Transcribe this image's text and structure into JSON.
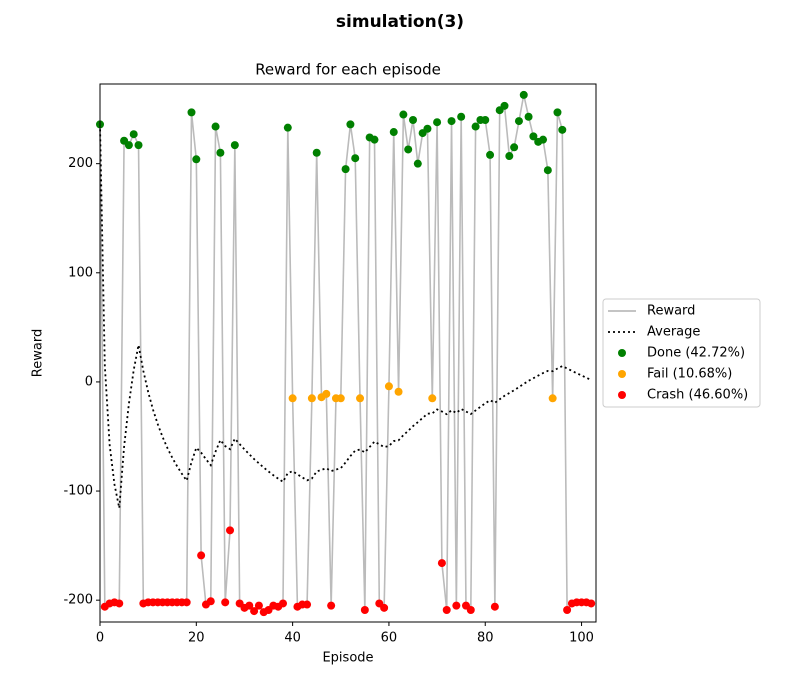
{
  "chart_data": {
    "type": "line",
    "suptitle": "simulation(3)",
    "title": "Reward for each episode",
    "xlabel": "Episode",
    "ylabel": "Reward",
    "xlim": [
      0,
      103
    ],
    "ylim": [
      -220,
      273
    ],
    "xticks": [
      0,
      20,
      40,
      60,
      80,
      100
    ],
    "yticks": [
      -200,
      -100,
      0,
      100,
      200
    ],
    "legend": "outside right",
    "series": [
      {
        "name": "Reward",
        "kind": "line",
        "linestyle": "solid",
        "color": "#bbbbbb",
        "x": [
          0,
          1,
          2,
          3,
          4,
          5,
          6,
          7,
          8,
          9,
          10,
          11,
          12,
          13,
          14,
          15,
          16,
          17,
          18,
          19,
          20,
          21,
          22,
          23,
          24,
          25,
          26,
          27,
          28,
          29,
          30,
          31,
          32,
          33,
          34,
          35,
          36,
          37,
          38,
          39,
          40,
          41,
          42,
          43,
          44,
          45,
          46,
          47,
          48,
          49,
          50,
          51,
          52,
          53,
          54,
          55,
          56,
          57,
          58,
          59,
          60,
          61,
          62,
          63,
          64,
          65,
          66,
          67,
          68,
          69,
          70,
          71,
          72,
          73,
          74,
          75,
          76,
          77,
          78,
          79,
          80,
          81,
          82,
          83,
          84,
          85,
          86,
          87,
          88,
          89,
          90,
          91,
          92,
          93,
          94,
          95,
          96,
          97,
          98,
          99,
          100,
          101,
          102
        ],
        "values": [
          236,
          -206,
          -203,
          -202,
          -203,
          221,
          217,
          227,
          217,
          -203,
          -202,
          -202,
          -202,
          -202,
          -202,
          -202,
          -202,
          -202,
          -202,
          247,
          204,
          -159,
          -204,
          -201,
          234,
          210,
          -202,
          -136,
          217,
          -203,
          -207,
          -205,
          -210,
          -205,
          -211,
          -209,
          -205,
          -206,
          -203,
          233,
          -15,
          -206,
          -204,
          -204,
          -15,
          210,
          -14,
          -11,
          -205,
          -15,
          -15,
          195,
          236,
          205,
          -15,
          -209,
          224,
          222,
          -203,
          -207,
          -4,
          229,
          -9,
          245,
          213,
          240,
          200,
          228,
          232,
          -15,
          238,
          -166,
          -209,
          239,
          -205,
          243,
          -205,
          -209,
          234,
          240,
          240,
          208,
          -206,
          249,
          253,
          207,
          215,
          239,
          263,
          243,
          225,
          220,
          222,
          194,
          -15,
          247,
          231,
          -209,
          -203,
          -202,
          -202,
          -202,
          -203
        ]
      },
      {
        "name": "Average",
        "kind": "line",
        "linestyle": "dotted",
        "color": "#000000",
        "x": [
          0,
          1,
          2,
          3,
          4,
          5,
          6,
          7,
          8,
          9,
          10,
          11,
          12,
          13,
          14,
          15,
          16,
          17,
          18,
          19,
          20,
          21,
          22,
          23,
          24,
          25,
          26,
          27,
          28,
          29,
          30,
          31,
          32,
          33,
          34,
          35,
          36,
          37,
          38,
          39,
          40,
          41,
          42,
          43,
          44,
          45,
          46,
          47,
          48,
          49,
          50,
          51,
          52,
          53,
          54,
          55,
          56,
          57,
          58,
          59,
          60,
          61,
          62,
          63,
          64,
          65,
          66,
          67,
          68,
          69,
          70,
          71,
          72,
          73,
          74,
          75,
          76,
          77,
          78,
          79,
          80,
          81,
          82,
          83,
          84,
          85,
          86,
          87,
          88,
          89,
          90,
          91,
          92,
          93,
          94,
          95,
          96,
          97,
          98,
          99,
          100,
          101,
          102
        ],
        "values": [
          236,
          15,
          -57.7,
          -93.8,
          -115.6,
          -59.5,
          -20,
          10.9,
          33.8,
          10.1,
          -9.2,
          -25.3,
          -38.8,
          -50.5,
          -60.6,
          -69.4,
          -77.2,
          -84.2,
          -90.4,
          -73.5,
          -60.3,
          -64.8,
          -70.8,
          -76.3,
          -63.8,
          -53.3,
          -58.8,
          -61.6,
          -52,
          -57,
          -61.8,
          -66.3,
          -70.7,
          -74.6,
          -78.5,
          -82.1,
          -85.5,
          -88.6,
          -91.6,
          -83.5,
          -81.8,
          -84.7,
          -87.5,
          -90.2,
          -88.5,
          -82,
          -80.6,
          -79.1,
          -81.7,
          -80.3,
          -79.1,
          -73.8,
          -67.9,
          -62.9,
          -62,
          -64.6,
          -59.6,
          -54.7,
          -57.2,
          -59.7,
          -58.8,
          -54.2,
          -53.5,
          -48.8,
          -44.8,
          -40.5,
          -36.9,
          -33,
          -29.1,
          -28.9,
          -25.2,
          -27.1,
          -29.6,
          -26,
          -28.4,
          -24.8,
          -27.1,
          -29.5,
          -26.1,
          -22.8,
          -19.6,
          -16.8,
          -19.1,
          -15.9,
          -12.7,
          -10.2,
          -7.6,
          -4.8,
          -1.8,
          1,
          3.4,
          5.8,
          8.1,
          10.1,
          9.8,
          12.3,
          14.5,
          12.3,
          10.1,
          8,
          5.9,
          3.8,
          1.8
        ]
      },
      {
        "name": "Done (42.72%)",
        "kind": "scatter",
        "color": "#008000",
        "x": [
          0,
          5,
          6,
          7,
          8,
          19,
          20,
          24,
          25,
          28,
          39,
          45,
          51,
          52,
          53,
          56,
          57,
          61,
          63,
          64,
          65,
          66,
          67,
          68,
          70,
          73,
          75,
          78,
          79,
          80,
          81,
          83,
          84,
          85,
          86,
          87,
          88,
          89,
          90,
          91,
          92,
          93,
          95,
          96
        ],
        "values": [
          236,
          221,
          217,
          227,
          217,
          247,
          204,
          234,
          210,
          217,
          233,
          210,
          195,
          236,
          205,
          224,
          222,
          229,
          245,
          213,
          240,
          200,
          228,
          232,
          238,
          239,
          243,
          234,
          240,
          240,
          208,
          249,
          253,
          207,
          215,
          239,
          263,
          243,
          225,
          220,
          222,
          194,
          247,
          231
        ]
      },
      {
        "name": "Fail (10.68%)",
        "kind": "scatter",
        "color": "#ffa500",
        "x": [
          40,
          44,
          46,
          47,
          49,
          50,
          54,
          60,
          62,
          69,
          94
        ],
        "values": [
          -15,
          -15,
          -14,
          -11,
          -15,
          -15,
          -15,
          -4,
          -9,
          -15,
          -15
        ]
      },
      {
        "name": "Crash (46.60%)",
        "kind": "scatter",
        "color": "#ff0000",
        "x": [
          1,
          2,
          3,
          4,
          9,
          10,
          11,
          12,
          13,
          14,
          15,
          16,
          17,
          18,
          21,
          22,
          23,
          26,
          27,
          29,
          30,
          31,
          32,
          33,
          34,
          35,
          36,
          37,
          38,
          41,
          42,
          43,
          48,
          55,
          58,
          59,
          71,
          72,
          74,
          76,
          77,
          82,
          97,
          98,
          99,
          100,
          101,
          102
        ],
        "values": [
          -206,
          -203,
          -202,
          -203,
          -203,
          -202,
          -202,
          -202,
          -202,
          -202,
          -202,
          -202,
          -202,
          -202,
          -159,
          -204,
          -201,
          -202,
          -136,
          -203,
          -207,
          -205,
          -210,
          -205,
          -211,
          -209,
          -205,
          -206,
          -203,
          -206,
          -204,
          -204,
          -205,
          -209,
          -203,
          -207,
          -166,
          -209,
          -205,
          -205,
          -209,
          -206,
          -209,
          -203,
          -202,
          -202,
          -202,
          -203
        ]
      }
    ]
  }
}
